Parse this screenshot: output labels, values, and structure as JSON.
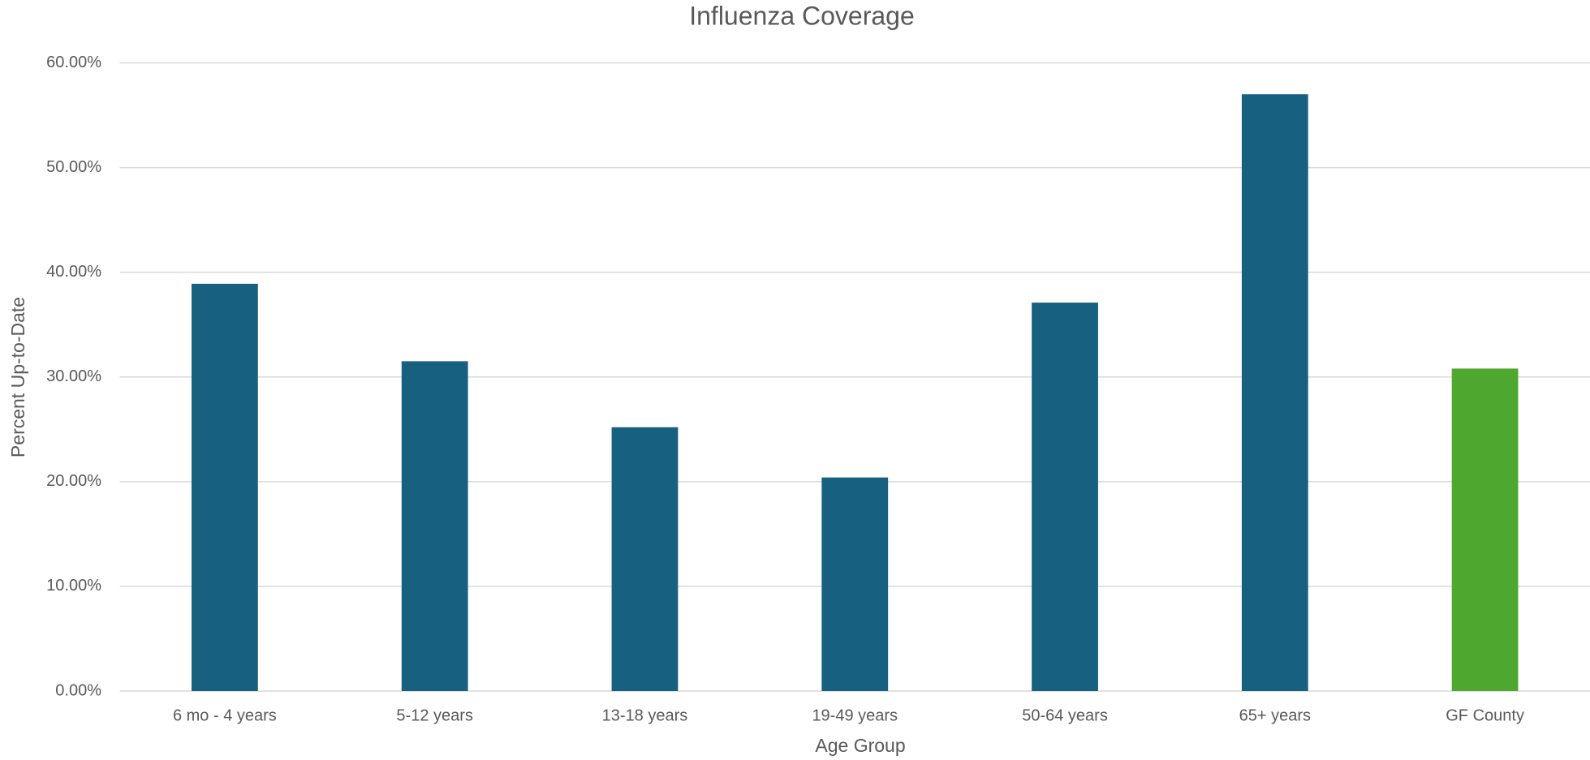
{
  "chart_data": {
    "type": "bar",
    "title": "Influenza Coverage",
    "x_label": "Age Group",
    "y_label": "Percent  Up-to-Date",
    "categories": [
      "6 mo - 4 years",
      "5-12 years",
      "13-18 years",
      "19-49 years",
      "50-64 years",
      "65+ years",
      "GF County"
    ],
    "values": [
      38.9,
      31.5,
      25.2,
      20.4,
      37.1,
      57.0,
      30.8
    ],
    "colors": [
      "#17607f",
      "#17607f",
      "#17607f",
      "#17607f",
      "#17607f",
      "#17607f",
      "#4ea72e"
    ],
    "ylim": [
      0,
      60
    ],
    "yticks": [
      {
        "value": 0,
        "label": "0.00%"
      },
      {
        "value": 10,
        "label": "10.00%"
      },
      {
        "value": 20,
        "label": "20.00%"
      },
      {
        "value": 30,
        "label": "30.00%"
      },
      {
        "value": 40,
        "label": "40.00%"
      },
      {
        "value": 50,
        "label": "50.00%"
      },
      {
        "value": 60,
        "label": "60.00%"
      }
    ],
    "grid": true
  }
}
